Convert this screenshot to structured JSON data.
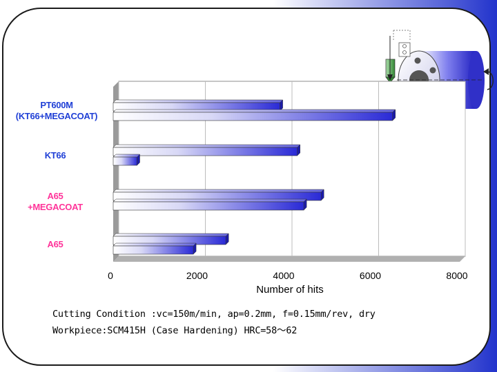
{
  "colors": {
    "frame_border": "#1a1a1a",
    "frame_fill": "#ffffff",
    "bg_blue": "#2233cc",
    "bar_dark": "#2a2ad6",
    "bar_light": "#ffffff",
    "label_blue": "#1f3fd6",
    "label_pink": "#ff3399",
    "plot_wall": "#8c8c8c"
  },
  "chart_data": {
    "type": "bar",
    "orientation": "horizontal",
    "categories": [
      "PT600M\n(KT66+MEGACOAT)",
      "KT66",
      "A65\n+MEGACOAT",
      "A65"
    ],
    "category_colors": [
      "#1f3fd6",
      "#1f3fd6",
      "#ff3399",
      "#ff3399"
    ],
    "series": [
      {
        "values": [
          3850,
          4250,
          4800,
          2600
        ]
      },
      {
        "values": [
          6450,
          550,
          4400,
          1850
        ]
      }
    ],
    "xlabel": "Number of hits",
    "xlim": [
      0,
      8000
    ],
    "xticks": [
      0,
      2000,
      4000,
      6000,
      8000
    ],
    "grid": true
  },
  "notes": {
    "line1": "Cutting Condition :vc=150m/min, ap=0.2mm, f=0.15mm/rev, dry",
    "line2": "Workpiece:SCM415H (Case Hardening) HRC=58～62"
  },
  "icons": {
    "illustration": "turning-tool-workpiece-icon",
    "rotation": "rotation-arrow-icon"
  }
}
